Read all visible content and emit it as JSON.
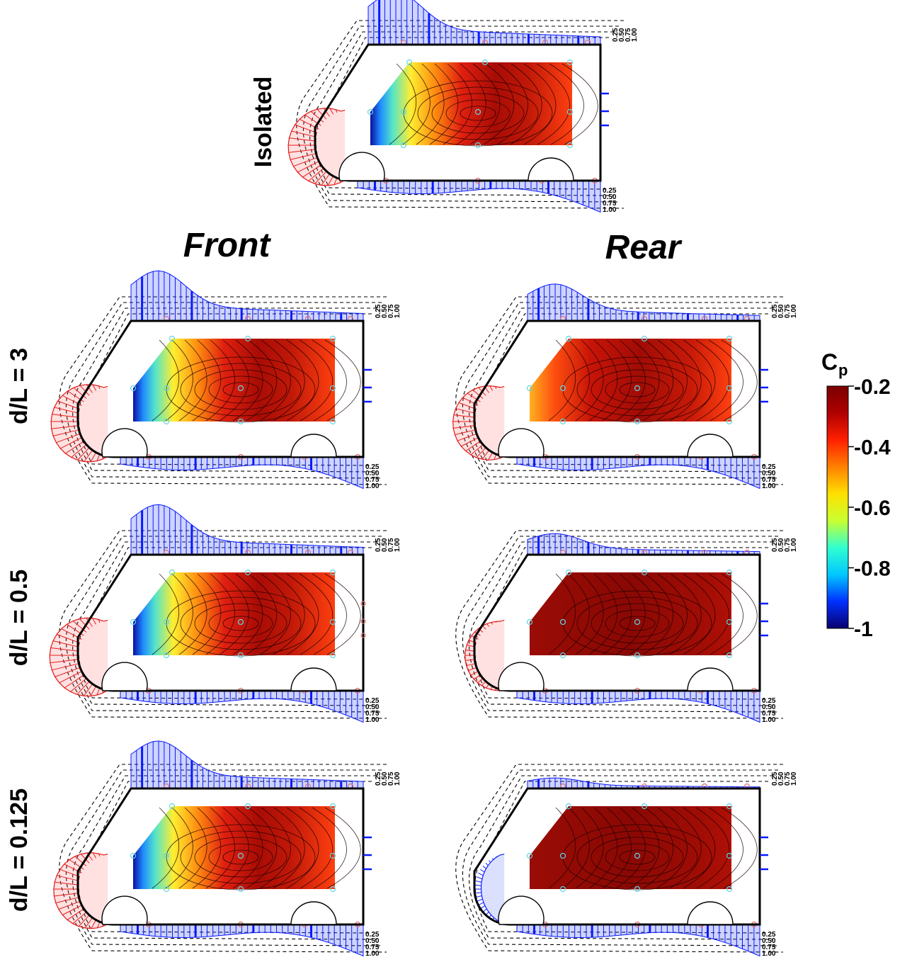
{
  "labels": {
    "isolated": "Isolated",
    "front": "Front",
    "rear": "Rear",
    "rows": [
      "d/L = 3",
      "d/L = 0.5",
      "d/L = 0.125"
    ]
  },
  "scale_ticks": [
    "0.25",
    "0.50",
    "0.75",
    "1.00"
  ],
  "colorbar": {
    "title": "C",
    "subscript": "p",
    "ticks": [
      "-0.2",
      "-0.4",
      "-0.6",
      "-0.8",
      "-1"
    ],
    "range": [
      -1,
      -0.2
    ],
    "colors": [
      "#08006e",
      "#0030ff",
      "#00c8ff",
      "#30ffd0",
      "#c8ff30",
      "#ffe000",
      "#ff8000",
      "#ff2000",
      "#b00000",
      "#7a0000"
    ]
  },
  "palette": {
    "suction_fill": "#3a55ff",
    "suction_line": "#0a1aff",
    "pressure_fill": "#ff5a5a",
    "pressure_line": "#e01010",
    "body": "#000000"
  },
  "panels": [
    {
      "id": "isolated",
      "map": "front_strong",
      "leftMag": 1.0,
      "roofMag": 1.0,
      "rearTaps": true
    },
    {
      "id": "front-3",
      "map": "front_strong",
      "leftMag": 1.0,
      "roofMag": 0.95,
      "rearTaps": true
    },
    {
      "id": "rear-3",
      "map": "rear_mild",
      "leftMag": 0.8,
      "roofMag": 0.7,
      "rearTaps": true
    },
    {
      "id": "front-05",
      "map": "front_strong",
      "leftMag": 1.05,
      "roofMag": 0.95,
      "rearTaps": false
    },
    {
      "id": "rear-05",
      "map": "rear_dark",
      "leftMag": 0.35,
      "roofMag": 0.4,
      "rearTaps": true
    },
    {
      "id": "front-0125",
      "map": "front_strong",
      "leftMag": 0.9,
      "roofMag": 0.9,
      "rearTaps": true
    },
    {
      "id": "rear-0125",
      "map": "rear_dark",
      "leftMag": -0.25,
      "roofMag": 0.2,
      "rearTaps": true
    }
  ]
}
